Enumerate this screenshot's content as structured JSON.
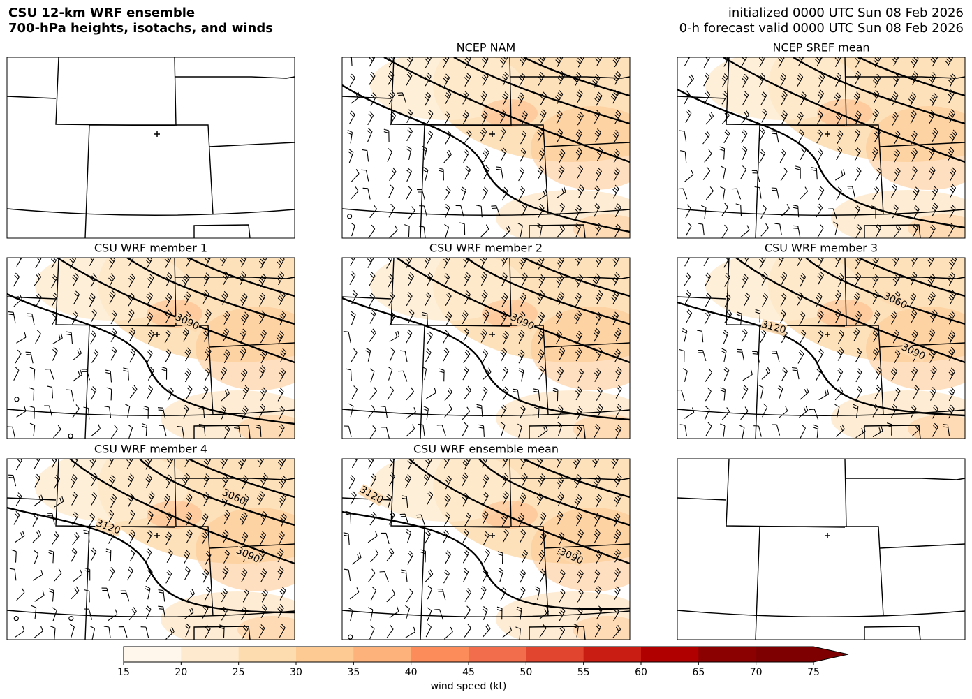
{
  "header": {
    "title": [
      "CSU 12-km WRF ensemble",
      "700-hPa heights, isotachs, and winds"
    ],
    "init": "initialized 0000 UTC Sun 08 Feb 2026",
    "valid": "0-h forecast valid 0000 UTC Sun 08 Feb 2026"
  },
  "panels": [
    {
      "title": "NCEP NAM",
      "contour_labels": []
    },
    {
      "title": "NCEP SREF mean",
      "contour_labels": []
    },
    {
      "title": "CSU WRF member 1",
      "contour_labels": [
        3090
      ]
    },
    {
      "title": "CSU WRF member 2",
      "contour_labels": [
        3090
      ]
    },
    {
      "title": "CSU WRF member 3",
      "contour_labels": [
        3060,
        3120,
        3090
      ]
    },
    {
      "title": "CSU WRF member 4",
      "contour_labels": [
        3060,
        3120,
        3090
      ]
    },
    {
      "title": "CSU WRF ensemble mean",
      "contour_labels": [
        3120,
        3090
      ]
    }
  ],
  "colorbar": {
    "label": "wind speed (kt)",
    "lim": [
      15,
      75
    ],
    "ticks": [
      15,
      20,
      25,
      30,
      35,
      40,
      45,
      50,
      55,
      60,
      65,
      70,
      75
    ],
    "colors": [
      "#fff7ec",
      "#feebcf",
      "#fddcaf",
      "#fdca94",
      "#fdb27b",
      "#fc8c59",
      "#f26d4b",
      "#e1452f",
      "#c91d13",
      "#b00000",
      "#8b0000",
      "#7f0000"
    ],
    "extend": "max"
  }
}
